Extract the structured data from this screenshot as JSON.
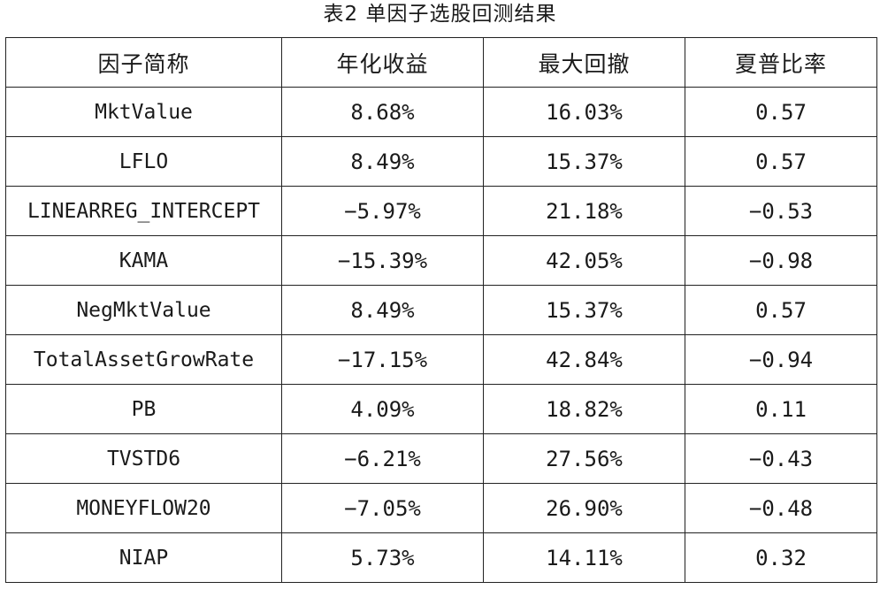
{
  "caption": "表2 单因子选股回测结果",
  "table": {
    "headers": [
      "因子简称",
      "年化收益",
      "最大回撤",
      "夏普比率"
    ],
    "rows": [
      [
        "MktValue",
        "8.68%",
        "16.03%",
        "0.57"
      ],
      [
        "LFLO",
        "8.49%",
        "15.37%",
        "0.57"
      ],
      [
        "LINEARREG_INTERCEPT",
        "−5.97%",
        "21.18%",
        "−0.53"
      ],
      [
        "KAMA",
        "−15.39%",
        "42.05%",
        "−0.98"
      ],
      [
        "NegMktValue",
        "8.49%",
        "15.37%",
        "0.57"
      ],
      [
        "TotalAssetGrowRate",
        "−17.15%",
        "42.84%",
        "−0.94"
      ],
      [
        "PB",
        "4.09%",
        "18.82%",
        "0.11"
      ],
      [
        "TVSTD6",
        "−6.21%",
        "27.56%",
        "−0.43"
      ],
      [
        "MONEYFLOW20",
        "−7.05%",
        "26.90%",
        "−0.48"
      ],
      [
        "NIAP",
        "5.73%",
        "14.11%",
        "0.32"
      ]
    ]
  }
}
